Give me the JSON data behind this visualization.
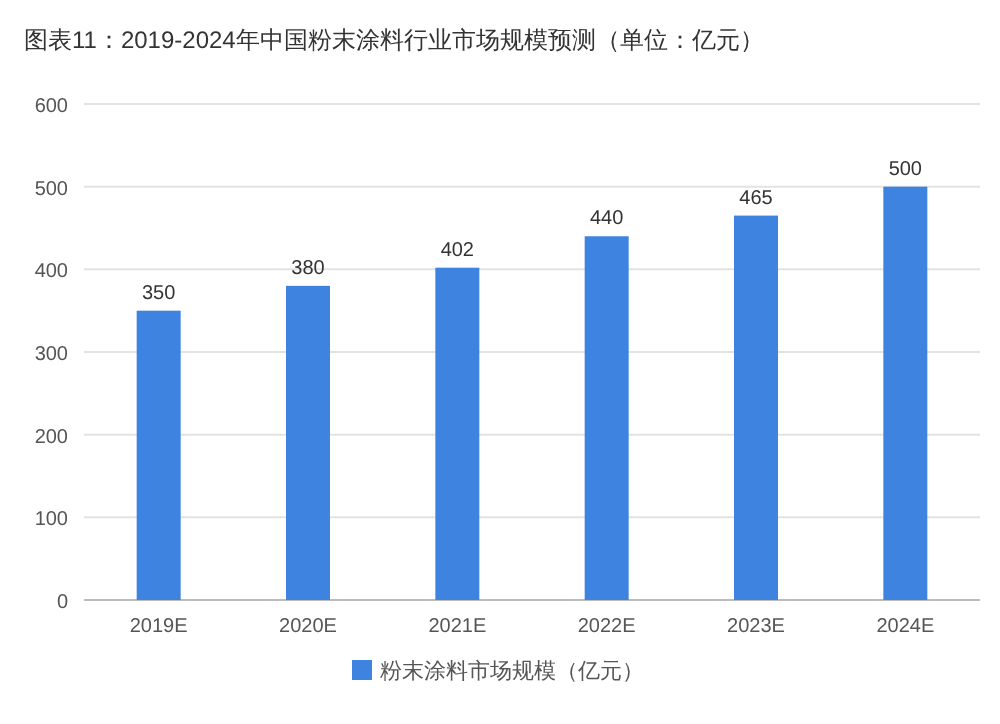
{
  "chart_data": {
    "type": "bar",
    "title": "图表11：2019-2024年中国粉末涂料行业市场规模预测（单位：亿元）",
    "categories": [
      "2019E",
      "2020E",
      "2021E",
      "2022E",
      "2023E",
      "2024E"
    ],
    "series": [
      {
        "name": "粉末涂料市场规模（亿元）",
        "color": "#3f83e0",
        "values": [
          350,
          380,
          402,
          440,
          465,
          500
        ]
      }
    ],
    "ylim": [
      0,
      600
    ],
    "yticks": [
      0,
      100,
      200,
      300,
      400,
      500,
      600
    ],
    "grid": "y",
    "data_labels": true,
    "legend": "bottom"
  }
}
